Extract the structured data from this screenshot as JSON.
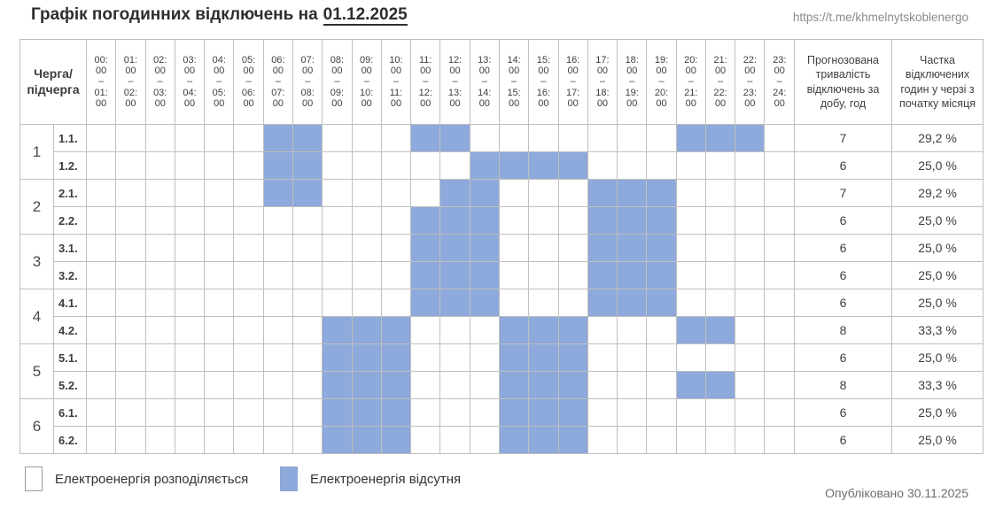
{
  "header": {
    "title": "Графік погодинних відключень на",
    "date": "01.12.2025",
    "source_url": "https://t.me/khmelnytskoblenergo"
  },
  "footer": {
    "published": "Опубліковано 30.11.2025"
  },
  "legend": {
    "on_label": "Електроенергія розподіляється",
    "off_label": "Електроенергія відсутня"
  },
  "chart_data": {
    "type": "heatmap",
    "title": "Графік погодинних відключень на 01.12.2025",
    "corner_header_line1": "Черга/",
    "corner_header_line2": "підчерга",
    "duration_header": "Прогнозована тривалість відключень за добу, год",
    "share_header": "Частка відключених годин у черзі з початку місяця",
    "hour_separator": "–",
    "outage_color": "#8EA9DB",
    "supply_color": "#FFFFFF",
    "cell_states": {
      "on": "Електроенергія розподіляється",
      "off": "Електроенергія відсутня"
    },
    "hour_slots": [
      {
        "from": "00:00",
        "to": "01:00"
      },
      {
        "from": "01:00",
        "to": "02:00"
      },
      {
        "from": "02:00",
        "to": "03:00"
      },
      {
        "from": "03:00",
        "to": "04:00"
      },
      {
        "from": "04:00",
        "to": "05:00"
      },
      {
        "from": "05:00",
        "to": "06:00"
      },
      {
        "from": "06:00",
        "to": "07:00"
      },
      {
        "from": "07:00",
        "to": "08:00"
      },
      {
        "from": "08:00",
        "to": "09:00"
      },
      {
        "from": "09:00",
        "to": "10:00"
      },
      {
        "from": "10:00",
        "to": "11:00"
      },
      {
        "from": "11:00",
        "to": "12:00"
      },
      {
        "from": "12:00",
        "to": "13:00"
      },
      {
        "from": "13:00",
        "to": "14:00"
      },
      {
        "from": "14:00",
        "to": "15:00"
      },
      {
        "from": "15:00",
        "to": "16:00"
      },
      {
        "from": "16:00",
        "to": "17:00"
      },
      {
        "from": "17:00",
        "to": "18:00"
      },
      {
        "from": "18:00",
        "to": "19:00"
      },
      {
        "from": "19:00",
        "to": "20:00"
      },
      {
        "from": "20:00",
        "to": "21:00"
      },
      {
        "from": "21:00",
        "to": "22:00"
      },
      {
        "from": "22:00",
        "to": "23:00"
      },
      {
        "from": "23:00",
        "to": "24:00"
      }
    ],
    "groups": [
      {
        "queue": "1",
        "subqueues": [
          {
            "label": "1.1.",
            "duration": "7",
            "share": "29,2 %",
            "outage_hours": [
              6,
              7,
              11,
              12,
              20,
              21,
              22
            ]
          },
          {
            "label": "1.2.",
            "duration": "6",
            "share": "25,0 %",
            "outage_hours": [
              6,
              7,
              13,
              14,
              15,
              16
            ]
          }
        ]
      },
      {
        "queue": "2",
        "subqueues": [
          {
            "label": "2.1.",
            "duration": "7",
            "share": "29,2 %",
            "outage_hours": [
              6,
              7,
              12,
              13,
              17,
              18,
              19
            ]
          },
          {
            "label": "2.2.",
            "duration": "6",
            "share": "25,0 %",
            "outage_hours": [
              11,
              12,
              13,
              17,
              18,
              19
            ]
          }
        ]
      },
      {
        "queue": "3",
        "subqueues": [
          {
            "label": "3.1.",
            "duration": "6",
            "share": "25,0 %",
            "outage_hours": [
              11,
              12,
              13,
              17,
              18,
              19
            ]
          },
          {
            "label": "3.2.",
            "duration": "6",
            "share": "25,0 %",
            "outage_hours": [
              11,
              12,
              13,
              17,
              18,
              19
            ]
          }
        ]
      },
      {
        "queue": "4",
        "subqueues": [
          {
            "label": "4.1.",
            "duration": "6",
            "share": "25,0 %",
            "outage_hours": [
              11,
              12,
              13,
              17,
              18,
              19
            ]
          },
          {
            "label": "4.2.",
            "duration": "8",
            "share": "33,3 %",
            "outage_hours": [
              8,
              9,
              10,
              14,
              15,
              16,
              20,
              21
            ]
          }
        ]
      },
      {
        "queue": "5",
        "subqueues": [
          {
            "label": "5.1.",
            "duration": "6",
            "share": "25,0 %",
            "outage_hours": [
              8,
              9,
              10,
              14,
              15,
              16
            ]
          },
          {
            "label": "5.2.",
            "duration": "8",
            "share": "33,3 %",
            "outage_hours": [
              8,
              9,
              10,
              14,
              15,
              16,
              20,
              21
            ]
          }
        ]
      },
      {
        "queue": "6",
        "subqueues": [
          {
            "label": "6.1.",
            "duration": "6",
            "share": "25,0 %",
            "outage_hours": [
              8,
              9,
              10,
              14,
              15,
              16
            ]
          },
          {
            "label": "6.2.",
            "duration": "6",
            "share": "25,0 %",
            "outage_hours": [
              8,
              9,
              10,
              14,
              15,
              16
            ]
          }
        ]
      }
    ]
  }
}
